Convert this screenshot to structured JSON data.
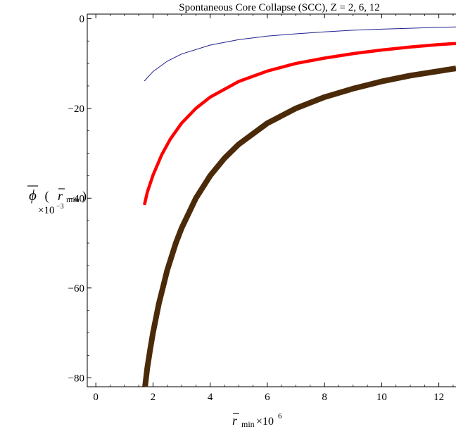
{
  "chart_data": {
    "type": "line",
    "title": "Spontaneous Core Collapse (SCC), Z = 2, 6, 12",
    "xlabel": {
      "symbol": "r",
      "subscript": "min",
      "suffix": "×10",
      "exponent": "6"
    },
    "ylabel": {
      "symbol": "ϕ",
      "open": " (",
      "inner_symbol": "r",
      "inner_subscript": "min",
      "close": ")",
      "scale_prefix": "×10",
      "scale_exponent": "−3"
    },
    "xlim": [
      -0.3,
      12.6
    ],
    "ylim": [
      -82,
      1
    ],
    "x_ticks": [
      0,
      2,
      4,
      6,
      8,
      10,
      12
    ],
    "x_tick_labels": [
      "0",
      "2",
      "4",
      "6",
      "8",
      "10",
      "12"
    ],
    "y_ticks": [
      0,
      -20,
      -40,
      -60,
      -80
    ],
    "y_tick_labels": [
      "0",
      "−20",
      "−40",
      "−60",
      "−80"
    ],
    "grid": false,
    "series": [
      {
        "color": "#1f1f8f",
        "points": [
          [
            1.7,
            -13.9
          ],
          [
            2.0,
            -11.8
          ],
          [
            2.5,
            -9.5
          ],
          [
            3.0,
            -7.9
          ],
          [
            4.0,
            -5.9
          ],
          [
            5.0,
            -4.7
          ],
          [
            6.0,
            -3.9
          ],
          [
            7.0,
            -3.4
          ],
          [
            8.0,
            -2.95
          ],
          [
            9.0,
            -2.6
          ],
          [
            10.0,
            -2.35
          ],
          [
            11.0,
            -2.15
          ],
          [
            12.0,
            -1.95
          ],
          [
            12.6,
            -1.85
          ]
        ]
      },
      {
        "color": "#ff0000",
        "points": [
          [
            1.7,
            -41.5
          ],
          [
            1.8,
            -38.7
          ],
          [
            2.0,
            -34.9
          ],
          [
            2.3,
            -30.4
          ],
          [
            2.6,
            -26.9
          ],
          [
            3.0,
            -23.3
          ],
          [
            3.5,
            -20.0
          ],
          [
            4.0,
            -17.5
          ],
          [
            5.0,
            -14.0
          ],
          [
            6.0,
            -11.7
          ],
          [
            7.0,
            -10.0
          ],
          [
            8.0,
            -8.8
          ],
          [
            9.0,
            -7.8
          ],
          [
            10.0,
            -7.0
          ],
          [
            11.0,
            -6.35
          ],
          [
            12.0,
            -5.8
          ],
          [
            12.6,
            -5.55
          ]
        ]
      },
      {
        "color": "#4b2a0a",
        "points": [
          [
            1.72,
            -82.0
          ],
          [
            1.8,
            -77.8
          ],
          [
            1.9,
            -73.7
          ],
          [
            2.0,
            -70.0
          ],
          [
            2.2,
            -63.6
          ],
          [
            2.5,
            -56.0
          ],
          [
            2.8,
            -50.0
          ],
          [
            3.0,
            -46.7
          ],
          [
            3.5,
            -40.0
          ],
          [
            4.0,
            -35.0
          ],
          [
            4.5,
            -31.1
          ],
          [
            5.0,
            -28.0
          ],
          [
            6.0,
            -23.3
          ],
          [
            7.0,
            -20.0
          ],
          [
            8.0,
            -17.5
          ],
          [
            9.0,
            -15.6
          ],
          [
            10.0,
            -14.0
          ],
          [
            11.0,
            -12.7
          ],
          [
            12.0,
            -11.7
          ],
          [
            12.6,
            -11.1
          ]
        ]
      }
    ]
  }
}
